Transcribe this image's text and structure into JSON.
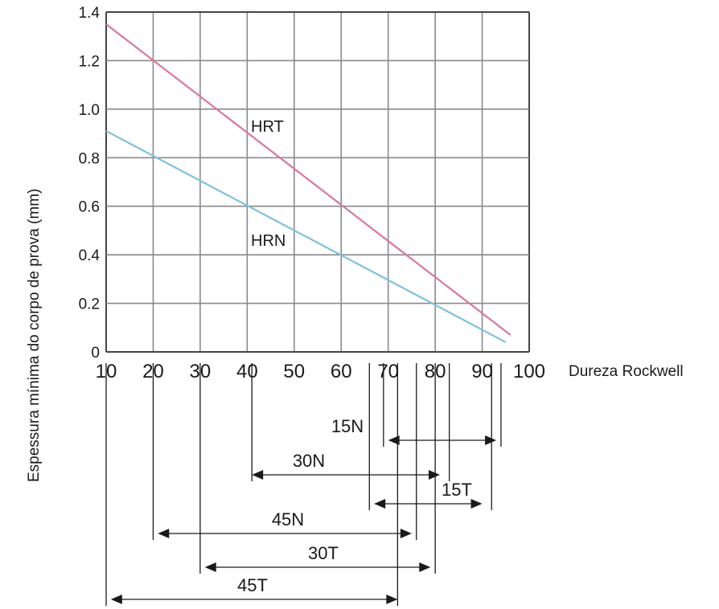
{
  "chart_data": {
    "type": "line",
    "xlabel": "Dureza Rockwell",
    "ylabel": "Espessura mínima do corpo de prova (mm)",
    "xlim": [
      10,
      100
    ],
    "ylim": [
      0,
      1.4
    ],
    "x_ticks": [
      "10",
      "20",
      "30",
      "40",
      "50",
      "60",
      "70",
      "80",
      "90",
      "100"
    ],
    "y_ticks": [
      "0",
      "0.2",
      "0.4",
      "0.6",
      "0.8",
      "1.0",
      "1.2",
      "1.4"
    ],
    "grid": true,
    "series": [
      {
        "name": "HRT",
        "color": "#d9789a",
        "x": [
          10,
          96
        ],
        "y": [
          1.35,
          0.07
        ]
      },
      {
        "name": "HRN",
        "color": "#7fc0de",
        "x": [
          10,
          95
        ],
        "y": [
          0.91,
          0.04
        ]
      }
    ],
    "ranges": [
      {
        "name": "15N",
        "from": 70,
        "to": 93,
        "bounds": [
          69,
          94
        ]
      },
      {
        "name": "30N",
        "from": 41,
        "to": 81,
        "bounds": [
          41,
          83
        ]
      },
      {
        "name": "15T",
        "from": 67,
        "to": 90,
        "bounds": [
          66,
          92
        ]
      },
      {
        "name": "45N",
        "from": 21,
        "to": 75,
        "bounds": [
          20,
          76
        ]
      },
      {
        "name": "30T",
        "from": 31,
        "to": 79,
        "bounds": [
          30,
          80
        ]
      },
      {
        "name": "45T",
        "from": 11,
        "to": 72,
        "bounds": [
          10,
          72
        ]
      }
    ]
  }
}
